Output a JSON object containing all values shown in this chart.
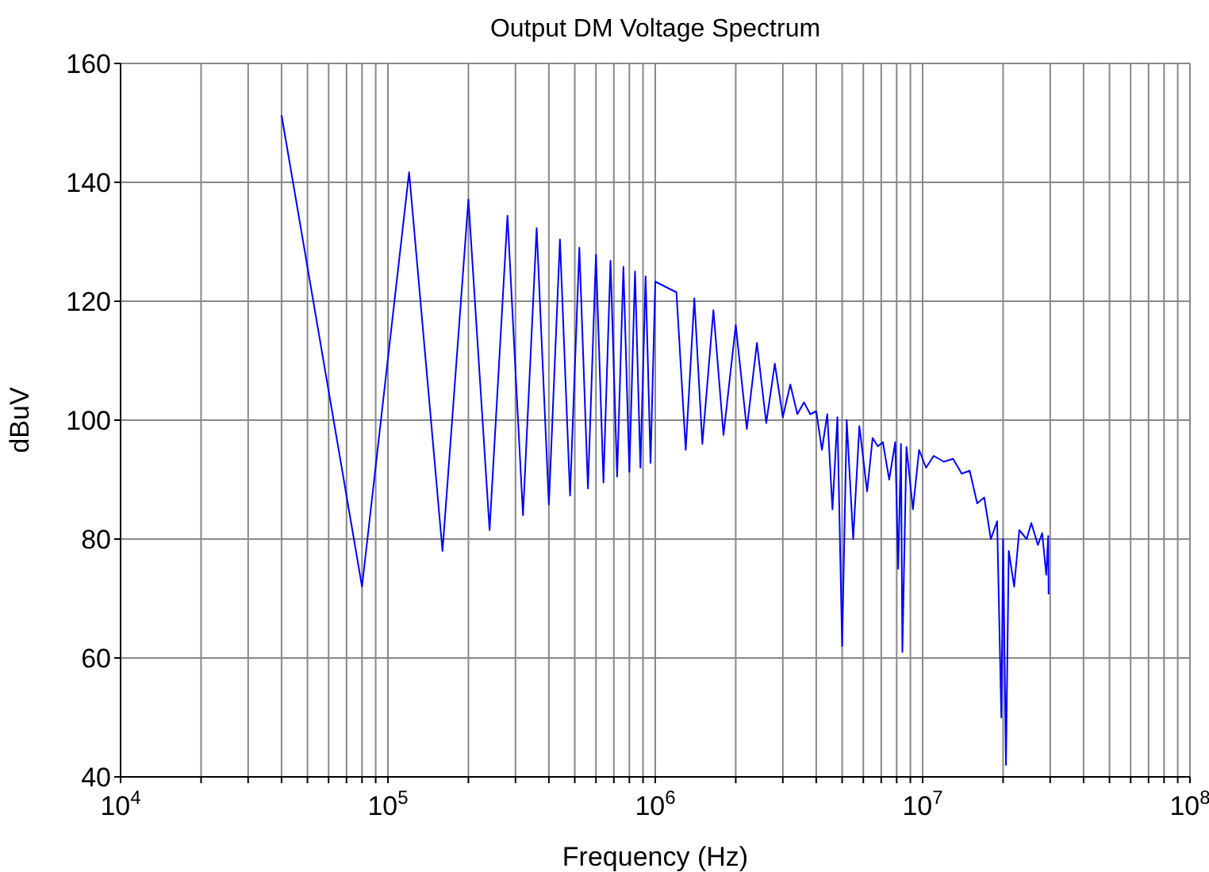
{
  "chart_data": {
    "type": "line",
    "title": "Output DM Voltage Spectrum",
    "xlabel": "Frequency (Hz)",
    "ylabel": "dBuV",
    "log": "x",
    "grid": true,
    "xlim": [
      10000,
      100000000
    ],
    "ylim": [
      40,
      160
    ],
    "yticks": [
      40,
      60,
      80,
      100,
      120,
      140,
      160
    ],
    "xticks": [
      {
        "value": 10000,
        "label": "10$^{4}$"
      },
      {
        "value": 20000,
        "label": null
      },
      {
        "value": 30000,
        "label": null
      },
      {
        "value": 40000,
        "label": null
      },
      {
        "value": 50000,
        "label": null
      },
      {
        "value": 60000,
        "label": null
      },
      {
        "value": 70000,
        "label": null
      },
      {
        "value": 80000,
        "label": null
      },
      {
        "value": 90000,
        "label": null
      },
      {
        "value": 100000,
        "label": "10$^{5}$"
      },
      {
        "value": 200000,
        "label": null
      },
      {
        "value": 300000,
        "label": null
      },
      {
        "value": 400000,
        "label": null
      },
      {
        "value": 500000,
        "label": null
      },
      {
        "value": 600000,
        "label": null
      },
      {
        "value": 700000,
        "label": null
      },
      {
        "value": 800000,
        "label": null
      },
      {
        "value": 900000,
        "label": null
      },
      {
        "value": 1000000,
        "label": "10$^{6}$"
      },
      {
        "value": 2000000,
        "label": null
      },
      {
        "value": 3000000,
        "label": null
      },
      {
        "value": 4000000,
        "label": null
      },
      {
        "value": 5000000,
        "label": null
      },
      {
        "value": 6000000,
        "label": null
      },
      {
        "value": 7000000,
        "label": null
      },
      {
        "value": 8000000,
        "label": null
      },
      {
        "value": 9000000,
        "label": null
      },
      {
        "value": 10000000,
        "label": "10$^{7}$"
      },
      {
        "value": 20000000,
        "label": null
      },
      {
        "value": 30000000,
        "label": null
      },
      {
        "value": 40000000,
        "label": null
      },
      {
        "value": 50000000,
        "label": null
      },
      {
        "value": 60000000,
        "label": null
      },
      {
        "value": 70000000,
        "label": null
      },
      {
        "value": 80000000,
        "label": null
      },
      {
        "value": 90000000,
        "label": null
      },
      {
        "value": 100000000,
        "label": "10$^{8}$"
      }
    ],
    "series": [
      {
        "color": "#0000ff",
        "x": [
          40000,
          80000,
          120000,
          160000,
          200000,
          240000,
          280000,
          320000,
          360000,
          400000,
          440000,
          480000,
          520000,
          560000,
          600000,
          640000,
          680000,
          720000,
          760000,
          800000,
          840000,
          880000,
          920000,
          960000,
          1000000,
          1200000,
          1300000,
          1400000,
          1500000,
          1650000,
          1800000,
          2000000,
          2200000,
          2400000,
          2600000,
          2800000,
          3000000,
          3200000,
          3400000,
          3600000,
          3800000,
          4000000,
          4200000,
          4400000,
          4600000,
          4800000,
          5000000,
          5200000,
          5500000,
          5800000,
          6200000,
          6500000,
          6800000,
          7100000,
          7500000,
          7900000,
          8100000,
          8300000,
          8400000,
          8700000,
          9200000,
          9700000,
          10300000,
          11000000,
          12000000,
          13000000,
          14000000,
          15000000,
          16000000,
          17000000,
          18000000,
          19000000,
          19700000,
          20000000,
          20500000,
          21000000,
          22000000,
          23000000,
          24500000,
          25500000,
          27000000,
          28000000,
          29000000,
          29500000,
          29600000
        ],
        "values": [
          151.3,
          72,
          141.7,
          78,
          137.1,
          81.5,
          134.4,
          84,
          132.3,
          85.8,
          130.4,
          87.3,
          129,
          88.5,
          127.8,
          89.5,
          126.8,
          90.5,
          125.8,
          91.3,
          125,
          92,
          124.2,
          92.8,
          123.3,
          121.5,
          95,
          120.5,
          96,
          118.5,
          97.5,
          116,
          98.5,
          113,
          99.5,
          109.5,
          100.5,
          106,
          101,
          103,
          101,
          101.5,
          95,
          101,
          85,
          100.5,
          62,
          100,
          80,
          99,
          88,
          97,
          95.6,
          96.3,
          90,
          96.3,
          75,
          96,
          61,
          95.5,
          85,
          95,
          92,
          94,
          93,
          93.5,
          91,
          91.5,
          86,
          87,
          80,
          83,
          50,
          80,
          42,
          78,
          72,
          81.5,
          80,
          82.7,
          79,
          81,
          74,
          80.5,
          70.7
        ]
      }
    ]
  }
}
